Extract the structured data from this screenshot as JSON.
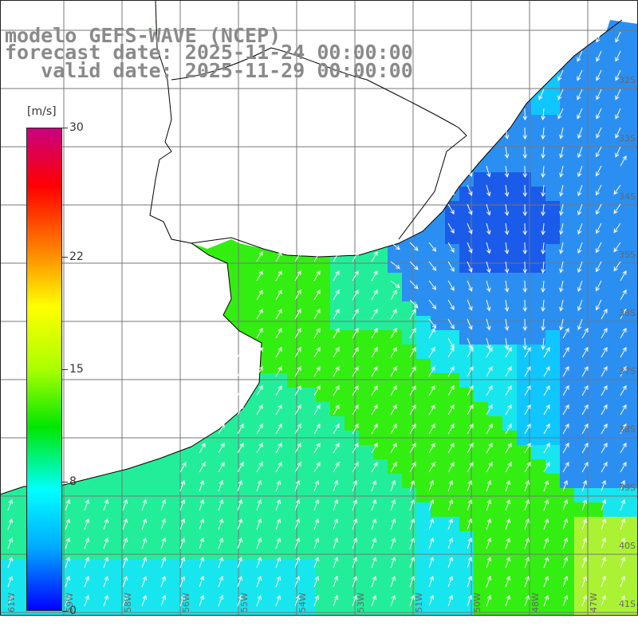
{
  "title": {
    "line1": "modelo GEFS-WAVE (NCEP)",
    "line2": "forecast date: 2025-11-24 00:00:00",
    "line3": "   valid date: 2025-11-29 00:00:00"
  },
  "colorbar": {
    "unit": "[m/s]",
    "min": 0,
    "max": 30,
    "ticks": [
      {
        "value": 30,
        "label": "30"
      },
      {
        "value": 22,
        "label": "22"
      },
      {
        "value": 15,
        "label": "15"
      },
      {
        "value": 8,
        "label": "8"
      },
      {
        "value": 0,
        "label": "0"
      }
    ],
    "gradient": [
      "#0000ff",
      "#00aaff",
      "#00ffff",
      "#00e600",
      "#aaff00",
      "#ffff00",
      "#ff8000",
      "#ff0000",
      "#c80080"
    ]
  },
  "map": {
    "ocean_colors": {
      "dark_blue": "#1a5bea",
      "blue": "#2b8ff2",
      "light_blue": "#0fc6ff",
      "cyan": "#18e6ee",
      "teal_green": "#22ee9a",
      "green": "#33ee11",
      "yellow_green": "#aaf233"
    },
    "land_color": "#ffffff",
    "grid_color": "#777777",
    "coastline_color": "#000000",
    "arrow_color": "#ffffff"
  },
  "lon_labels": [
    "61W",
    "59W",
    "58W",
    "56W",
    "55W",
    "54W",
    "53W",
    "51W",
    "50W",
    "48W",
    "47W"
  ],
  "lat_labels": [
    "32S",
    "33S",
    "34S",
    "35S",
    "36S",
    "37S",
    "38S",
    "39S",
    "40S",
    "41S"
  ]
}
